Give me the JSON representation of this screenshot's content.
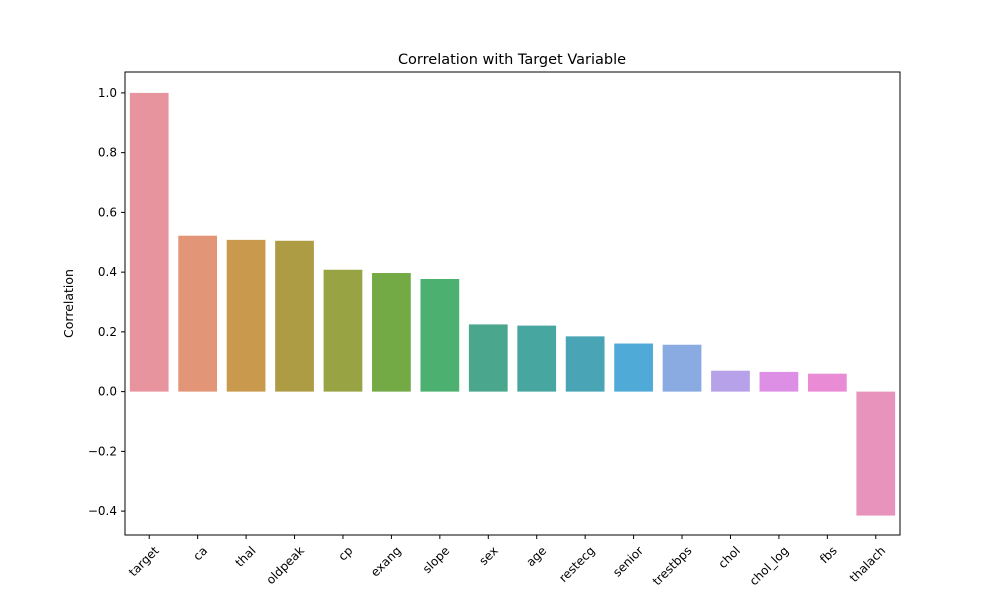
{
  "chart_data": {
    "type": "bar",
    "title": "Correlation with Target Variable",
    "xlabel": "",
    "ylabel": "Correlation",
    "categories": [
      "target",
      "ca",
      "thal",
      "oldpeak",
      "cp",
      "exang",
      "slope",
      "sex",
      "age",
      "restecg",
      "senior",
      "trestbps",
      "chol",
      "chol_log",
      "fbs",
      "thalach"
    ],
    "values": [
      1.0,
      0.522,
      0.508,
      0.505,
      0.408,
      0.397,
      0.377,
      0.225,
      0.221,
      0.185,
      0.161,
      0.157,
      0.07,
      0.066,
      0.06,
      -0.415
    ],
    "colors": [
      "#e8949f",
      "#e29677",
      "#c99a4e",
      "#ae9c45",
      "#98a444",
      "#74aa45",
      "#4bb070",
      "#4aa78e",
      "#48a6a0",
      "#49a5b5",
      "#50aad8",
      "#89abe2",
      "#b7a1e8",
      "#dd8fe6",
      "#ea8bd5",
      "#e893bc"
    ],
    "ylim": [
      -0.48,
      1.07
    ],
    "yticks": [
      -0.4,
      -0.2,
      0.0,
      0.2,
      0.4,
      0.6,
      0.8,
      1.0
    ],
    "ytick_labels": [
      "−0.4",
      "−0.2",
      "0.0",
      "0.2",
      "0.4",
      "0.6",
      "0.8",
      "1.0"
    ],
    "grid": false,
    "legend": "none"
  }
}
